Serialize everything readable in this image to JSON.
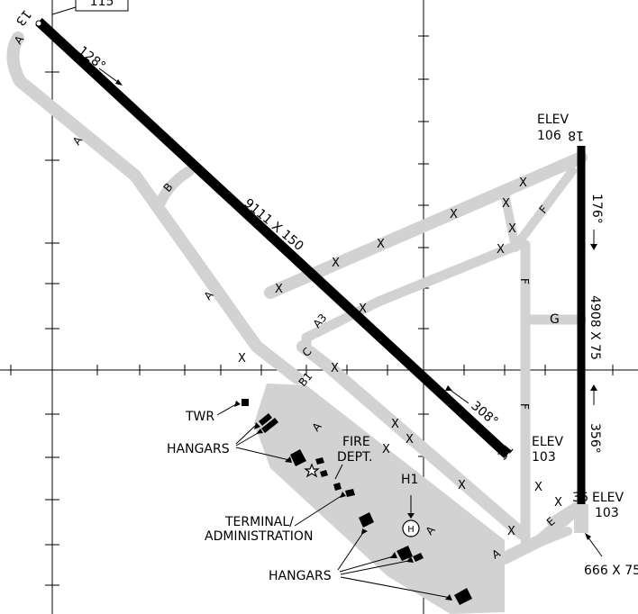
{
  "runways": [
    {
      "designation": "13",
      "dims": "9111 X 150",
      "heading_a": "128°",
      "heading_b": "308°",
      "end_b": "31"
    },
    {
      "designation": "18",
      "dims": "4908 X 75",
      "heading_a": "176°",
      "heading_b": "356°",
      "end_b": "36",
      "end_b_extra_dims": "666 X 75"
    }
  ],
  "elevations": [
    {
      "caption": "ELEV",
      "value": "106"
    },
    {
      "caption": "ELEV",
      "value": "103"
    },
    {
      "caption": "ELEV",
      "value": "103"
    }
  ],
  "top_box_value": "115",
  "taxiways": [
    "A",
    "B",
    "C",
    "F",
    "G",
    "E",
    "A3",
    "B1"
  ],
  "labels": {
    "twr": "TWR",
    "hangars": "HANGARS",
    "fire_l1": "FIRE",
    "fire_l2": "DEPT.",
    "term_l1": "TERMINAL/",
    "term_l2": "ADMINISTRATION",
    "heli": "H1",
    "heli_symbol": "H"
  },
  "colors": {
    "pavement": "#d2d2d2",
    "runway": "#000000",
    "grid": "#000000"
  },
  "closed_marker": "X"
}
